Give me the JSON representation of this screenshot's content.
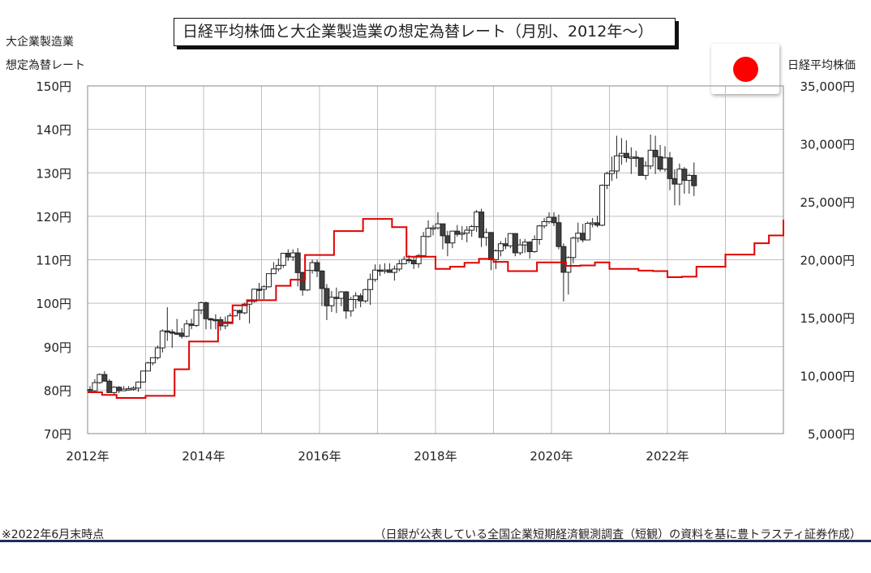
{
  "title": "日経平均株価と大企業製造業の想定為替レート（月別、2012年～）",
  "left_axis_title": [
    "大企業製造業",
    "想定為替レート"
  ],
  "right_axis_title": "日経平均株価",
  "footnote": "※2022年6月末時点",
  "source": "（日銀が公表している全国企業短期経済観測調査（短観）の資料を基に豊トラスティ証券作成）",
  "flag_icon": "japan-flag-icon",
  "colors": {
    "exchange_rate_line": "#e00000",
    "candle_up": "#ffffff",
    "candle_down": "#404040",
    "grid": "#bfbfbf"
  },
  "chart_data": {
    "type": "candlestick-line combo",
    "grid": true,
    "x_ticks": [
      "2012年",
      "2014年",
      "2016年",
      "2018年",
      "2020年",
      "2022年"
    ],
    "left_axis": {
      "ticks": [
        "70円",
        "80円",
        "90円",
        "100円",
        "110円",
        "120円",
        "130円",
        "140円",
        "150円"
      ],
      "ylim": [
        70,
        150
      ]
    },
    "right_axis": {
      "ticks": [
        "5,000円",
        "10,000円",
        "15,000円",
        "20,000円",
        "25,000円",
        "30,000円",
        "35,000円"
      ],
      "ylim": [
        5000,
        35000
      ]
    },
    "exchange_rate_series": {
      "axis": "left",
      "points": [
        [
          2012.0,
          79.5
        ],
        [
          2012.25,
          78.9
        ],
        [
          2012.5,
          78.2
        ],
        [
          2012.75,
          78.2
        ],
        [
          2013.0,
          78.7
        ],
        [
          2013.25,
          78.7
        ],
        [
          2013.5,
          84.8
        ],
        [
          2013.75,
          91.2
        ],
        [
          2014.0,
          91.2
        ],
        [
          2014.25,
          95.4
        ],
        [
          2014.5,
          99.5
        ],
        [
          2014.75,
          100.7
        ],
        [
          2015.0,
          100.7
        ],
        [
          2015.25,
          104.0
        ],
        [
          2015.5,
          105.4
        ],
        [
          2015.75,
          111.1
        ],
        [
          2016.0,
          111.1
        ],
        [
          2016.25,
          116.6
        ],
        [
          2016.5,
          116.6
        ],
        [
          2016.75,
          119.4
        ],
        [
          2017.0,
          119.4
        ],
        [
          2017.25,
          117.5
        ],
        [
          2017.5,
          110.7
        ],
        [
          2017.75,
          110.7
        ],
        [
          2018.0,
          107.9
        ],
        [
          2018.25,
          108.4
        ],
        [
          2018.5,
          109.3
        ],
        [
          2018.75,
          110.2
        ],
        [
          2019.0,
          109.5
        ],
        [
          2019.25,
          107.4
        ],
        [
          2019.5,
          107.4
        ],
        [
          2019.75,
          109.4
        ],
        [
          2020.0,
          109.4
        ],
        [
          2020.25,
          108.6
        ],
        [
          2020.5,
          108.7
        ],
        [
          2020.75,
          109.4
        ],
        [
          2021.0,
          107.9
        ],
        [
          2021.25,
          107.9
        ],
        [
          2021.5,
          107.5
        ],
        [
          2021.75,
          107.4
        ],
        [
          2022.0,
          106.0
        ],
        [
          2022.25,
          106.1
        ],
        [
          2022.5,
          108.4
        ],
        [
          2022.75,
          108.4
        ],
        [
          2023.0,
          111.2
        ],
        [
          2023.25,
          111.2
        ],
        [
          2023.5,
          113.8
        ],
        [
          2023.75,
          115.6
        ],
        [
          2024.0,
          119.2
        ]
      ]
    },
    "nikkei_candles": {
      "axis": "right",
      "months": [
        [
          8800,
          9100,
          8600,
          8700
        ],
        [
          8700,
          9700,
          8600,
          9400
        ],
        [
          9400,
          10200,
          9300,
          10100
        ],
        [
          10100,
          10400,
          9900,
          9520
        ],
        [
          9520,
          9700,
          8800,
          8540
        ],
        [
          8540,
          9100,
          8400,
          9000
        ],
        [
          9000,
          9100,
          8500,
          8700
        ],
        [
          8700,
          9100,
          8700,
          8840
        ],
        [
          8840,
          9100,
          8700,
          8870
        ],
        [
          8870,
          9100,
          8700,
          8930
        ],
        [
          8930,
          9500,
          8600,
          9450
        ],
        [
          9450,
          10400,
          9400,
          10400
        ],
        [
          10400,
          11200,
          10400,
          11100
        ],
        [
          11100,
          11500,
          10900,
          11550
        ],
        [
          11550,
          12600,
          11400,
          12400
        ],
        [
          12400,
          14000,
          12000,
          13860
        ],
        [
          13860,
          15900,
          13000,
          13770
        ],
        [
          13770,
          14000,
          12400,
          13680
        ],
        [
          13680,
          14900,
          13500,
          13670
        ],
        [
          13670,
          14100,
          13200,
          13390
        ],
        [
          13390,
          14800,
          13300,
          14460
        ],
        [
          14460,
          14900,
          14000,
          14330
        ],
        [
          14330,
          15600,
          14200,
          15660
        ],
        [
          15660,
          16400,
          15300,
          16290
        ],
        [
          16290,
          16400,
          14000,
          14910
        ],
        [
          14910,
          15000,
          14000,
          14840
        ],
        [
          14840,
          15300,
          14000,
          14830
        ],
        [
          14830,
          15100,
          13900,
          14300
        ],
        [
          14300,
          15100,
          14000,
          14630
        ],
        [
          14630,
          15400,
          14500,
          15160
        ],
        [
          15160,
          15700,
          15100,
          15620
        ],
        [
          15620,
          15700,
          14800,
          15420
        ],
        [
          15420,
          16300,
          15300,
          16170
        ],
        [
          16170,
          16400,
          14500,
          16410
        ],
        [
          16410,
          17500,
          16300,
          17460
        ],
        [
          17460,
          18000,
          16600,
          17450
        ],
        [
          17450,
          17800,
          16600,
          17670
        ],
        [
          17670,
          18800,
          17600,
          18800
        ],
        [
          18800,
          19800,
          18800,
          19210
        ],
        [
          19210,
          20100,
          19000,
          19520
        ],
        [
          19520,
          20600,
          19300,
          20560
        ],
        [
          20560,
          20900,
          19900,
          20240
        ],
        [
          20240,
          20900,
          19900,
          20590
        ],
        [
          20590,
          21000,
          17700,
          18890
        ],
        [
          18890,
          19000,
          16900,
          17390
        ],
        [
          17390,
          19100,
          17300,
          19080
        ],
        [
          19080,
          20000,
          18800,
          19750
        ],
        [
          19750,
          20000,
          18500,
          19030
        ],
        [
          19030,
          19100,
          16000,
          17520
        ],
        [
          17520,
          17900,
          14800,
          16030
        ],
        [
          16030,
          17300,
          15500,
          16760
        ],
        [
          16760,
          17600,
          15400,
          16670
        ],
        [
          16670,
          17300,
          16000,
          17230
        ],
        [
          17230,
          17300,
          14900,
          15580
        ],
        [
          15580,
          16800,
          15100,
          16570
        ],
        [
          16570,
          17200,
          15800,
          16890
        ],
        [
          16890,
          17100,
          15900,
          16450
        ],
        [
          16450,
          17500,
          16300,
          17430
        ],
        [
          17430,
          18800,
          16100,
          18300
        ],
        [
          18300,
          19600,
          18100,
          19110
        ],
        [
          19110,
          19600,
          18600,
          19040
        ],
        [
          19040,
          19700,
          18800,
          19120
        ],
        [
          19120,
          19700,
          18900,
          18910
        ],
        [
          18910,
          19500,
          18200,
          19200
        ],
        [
          19200,
          20000,
          19000,
          19650
        ],
        [
          19650,
          20300,
          19800,
          20030
        ],
        [
          20030,
          20400,
          19700,
          19930
        ],
        [
          19930,
          20200,
          19200,
          19650
        ],
        [
          19650,
          20500,
          19300,
          20360
        ],
        [
          20360,
          22400,
          20300,
          22010
        ],
        [
          22010,
          23400,
          21900,
          22720
        ],
        [
          22720,
          23000,
          22100,
          22760
        ],
        [
          22760,
          24100,
          22600,
          23100
        ],
        [
          23100,
          23100,
          20900,
          22070
        ],
        [
          22070,
          22500,
          20300,
          21450
        ],
        [
          21450,
          22500,
          21000,
          22470
        ],
        [
          22470,
          23000,
          22000,
          22200
        ],
        [
          22200,
          22900,
          21700,
          22300
        ],
        [
          22300,
          22900,
          21500,
          22550
        ],
        [
          22550,
          23000,
          22000,
          22860
        ],
        [
          22860,
          24300,
          22400,
          24120
        ],
        [
          24120,
          24400,
          21100,
          21920
        ],
        [
          21920,
          22700,
          21200,
          22350
        ],
        [
          22350,
          22400,
          19100,
          20010
        ],
        [
          20010,
          20900,
          19200,
          20770
        ],
        [
          20770,
          21600,
          20300,
          21380
        ],
        [
          21380,
          21900,
          20900,
          21200
        ],
        [
          21200,
          22300,
          21000,
          22260
        ],
        [
          22260,
          22300,
          20300,
          20600
        ],
        [
          20600,
          21800,
          20400,
          21280
        ],
        [
          21280,
          21800,
          20600,
          21520
        ],
        [
          21520,
          21600,
          20100,
          20700
        ],
        [
          20700,
          22100,
          20600,
          21750
        ],
        [
          21750,
          23000,
          21300,
          22920
        ],
        [
          22920,
          23600,
          22700,
          23290
        ],
        [
          23290,
          24100,
          23100,
          23660
        ],
        [
          23660,
          24100,
          22900,
          23200
        ],
        [
          23200,
          23900,
          20900,
          21140
        ],
        [
          21140,
          21400,
          16400,
          18920
        ],
        [
          18920,
          20300,
          17000,
          20190
        ],
        [
          20190,
          22000,
          19700,
          21870
        ],
        [
          21870,
          23200,
          21500,
          22290
        ],
        [
          22290,
          23100,
          21500,
          21710
        ],
        [
          21710,
          23300,
          21700,
          23140
        ],
        [
          23140,
          23600,
          22800,
          23190
        ],
        [
          23190,
          23800,
          22800,
          22980
        ],
        [
          22980,
          26500,
          22900,
          26430
        ],
        [
          26430,
          27600,
          26100,
          27440
        ],
        [
          27440,
          28900,
          26800,
          27660
        ],
        [
          27660,
          30700,
          27000,
          28970
        ],
        [
          28970,
          30500,
          28200,
          29180
        ],
        [
          29180,
          30300,
          28400,
          28810
        ],
        [
          28810,
          29700,
          27400,
          28860
        ],
        [
          28860,
          29400,
          28000,
          28790
        ],
        [
          28790,
          28800,
          27300,
          27280
        ],
        [
          27280,
          28500,
          26900,
          28090
        ],
        [
          28090,
          30800,
          27800,
          29450
        ],
        [
          29450,
          30700,
          27400,
          28890
        ],
        [
          28890,
          29900,
          27600,
          27820
        ],
        [
          27820,
          29800,
          27600,
          28790
        ],
        [
          28790,
          29300,
          26000,
          27000
        ],
        [
          27000,
          27800,
          24700,
          26530
        ],
        [
          26530,
          28300,
          24700,
          27820
        ],
        [
          27820,
          28000,
          25700,
          26850
        ],
        [
          26850,
          27400,
          25700,
          27280
        ],
        [
          27280,
          28400,
          25500,
          26390
        ]
      ]
    }
  }
}
